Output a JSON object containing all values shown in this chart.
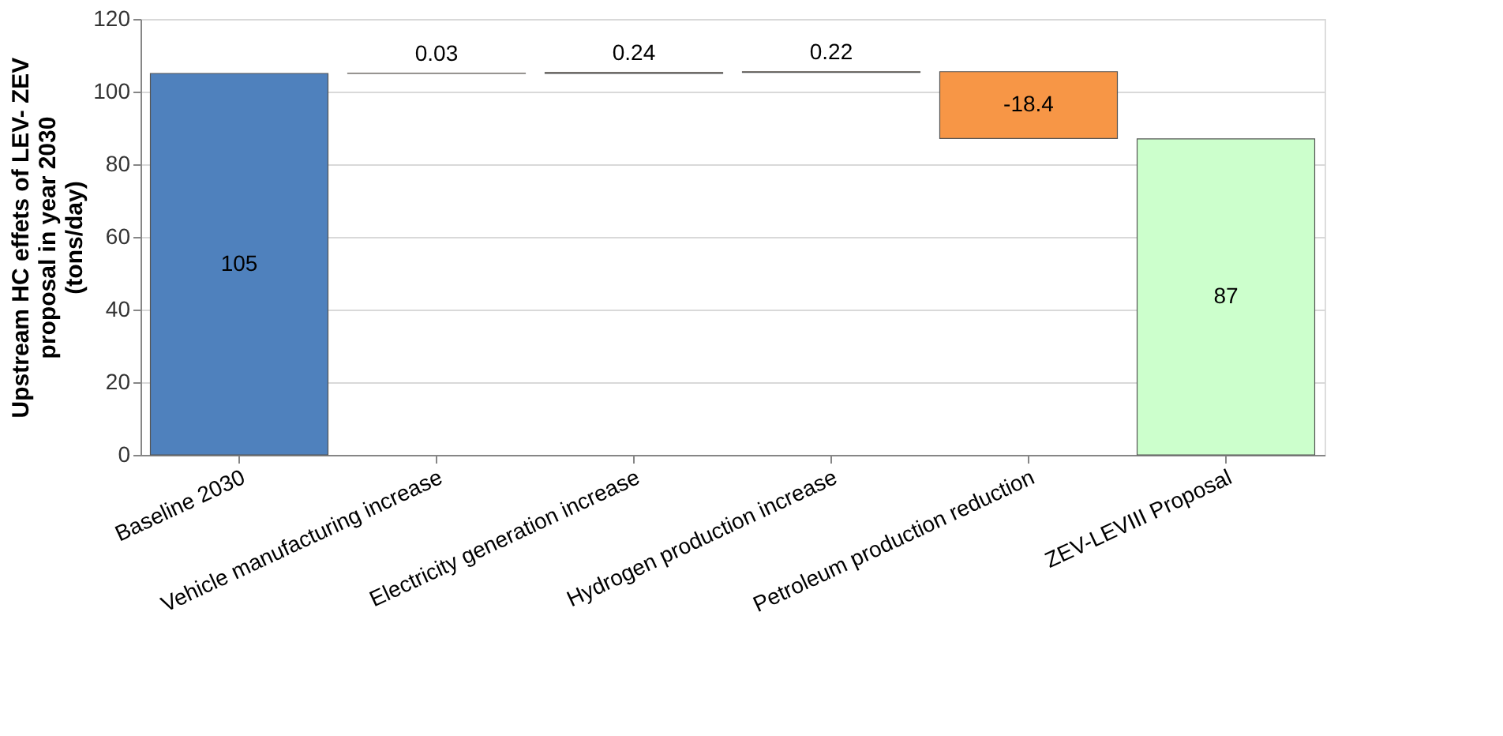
{
  "chart_data": {
    "type": "bar",
    "categories": [
      "Baseline 2030",
      "Vehicle manufacturing increase",
      "Electricity generation increase",
      "Hydrogen production increase",
      "Petroleum production reduction",
      "ZEV-LEVIII Proposal"
    ],
    "values": [
      105,
      0.03,
      0.24,
      0.22,
      -18.4,
      87
    ],
    "base": [
      0,
      105,
      105.03,
      105.27,
      105.49,
      0
    ],
    "colors": [
      "#4f81bd",
      "#f79646",
      "#f79646",
      "#f79646",
      "#f79646",
      "#ccffcc"
    ],
    "ylabel": "Upstream HC effets of LEV- ZEV proposal in year 2030 (tons/day)",
    "ylim": [
      0,
      120
    ],
    "yticks": [
      0,
      20,
      40,
      60,
      80,
      100,
      120
    ],
    "grid": "y",
    "data_labels": true
  }
}
